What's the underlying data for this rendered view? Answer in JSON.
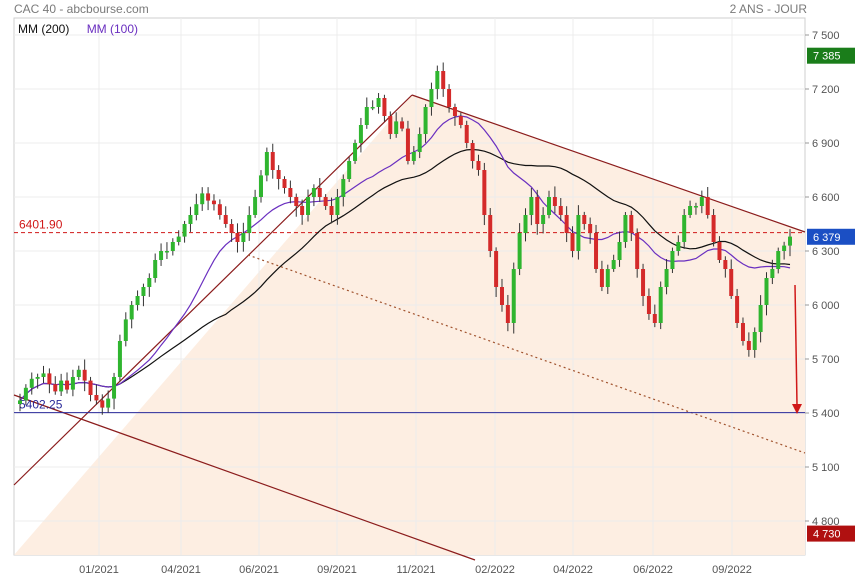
{
  "header": {
    "left": "CAC 40 - abcbourse.com",
    "right": "2 ANS - JOUR"
  },
  "legend": [
    {
      "label": "MM (200)",
      "color": "#111111"
    },
    {
      "label": "MM (100)",
      "color": "#6a2fc0"
    }
  ],
  "chart_data": {
    "type": "candlestick",
    "y_ticks": [
      "7 500",
      "7 200",
      "6 900",
      "6 600",
      "6 300",
      "6 000",
      "5 700",
      "5 400",
      "5 100",
      "4 800"
    ],
    "x_ticks": [
      "01/2021",
      "04/2021",
      "06/2021",
      "09/2021",
      "11/2021",
      "02/2022",
      "04/2022",
      "06/2022",
      "09/2022"
    ],
    "ylim": [
      4700,
      7580
    ],
    "price_tags": [
      {
        "label": "7 385",
        "value": 7385,
        "color": "#1a7d1a"
      },
      {
        "label": "6 379",
        "value": 6379,
        "color": "#1b4fc4"
      },
      {
        "label": "4 730",
        "value": 4730,
        "color": "#b01010"
      }
    ],
    "hlines": [
      {
        "label": "6401.90",
        "value": 6401.9,
        "color": "#d01818",
        "style": "dashed"
      },
      {
        "label": "5402.25",
        "value": 5402.25,
        "color": "#2a2a9a",
        "style": "solid"
      }
    ],
    "close_series": [
      5470,
      5540,
      5590,
      5600,
      5620,
      5560,
      5520,
      5580,
      5530,
      5600,
      5640,
      5580,
      5500,
      5470,
      5430,
      5480,
      5600,
      5800,
      5920,
      6000,
      6050,
      6100,
      6150,
      6250,
      6300,
      6300,
      6350,
      6380,
      6450,
      6500,
      6560,
      6620,
      6580,
      6560,
      6500,
      6450,
      6400,
      6350,
      6400,
      6500,
      6600,
      6720,
      6850,
      6750,
      6700,
      6650,
      6600,
      6550,
      6500,
      6600,
      6650,
      6600,
      6550,
      6500,
      6600,
      6700,
      6800,
      6900,
      7000,
      7100,
      7100,
      7150,
      7050,
      6950,
      7020,
      6980,
      6800,
      6850,
      6950,
      7100,
      7200,
      7300,
      7200,
      7100,
      7050,
      7000,
      6900,
      6800,
      6750,
      6500,
      6300,
      6100,
      6000,
      5900,
      6200,
      6400,
      6500,
      6600,
      6450,
      6500,
      6600,
      6550,
      6500,
      6400,
      6300,
      6500,
      6450,
      6400,
      6200,
      6100,
      6200,
      6250,
      6350,
      6500,
      6400,
      6200,
      6050,
      5950,
      5900,
      6100,
      6200,
      6300,
      6350,
      6500,
      6550,
      6550,
      6600,
      6500,
      6350,
      6250,
      6200,
      6050,
      5900,
      5800,
      5750,
      5850,
      6000,
      6150,
      6200,
      6300,
      6330,
      6380
    ]
  }
}
